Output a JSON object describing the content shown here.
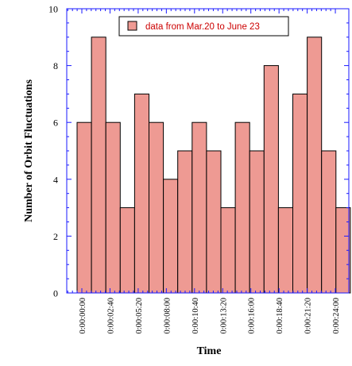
{
  "chart_data": {
    "type": "bar",
    "title": "",
    "xlabel": "Time",
    "ylabel": "Number of Orbit Fluctuations",
    "ylim": [
      0,
      10
    ],
    "yticks": [
      0,
      2,
      4,
      6,
      8,
      10
    ],
    "xticks": [
      "0:00:00:00",
      "0:00:02:40",
      "0:00:05:20",
      "0:00:08:00",
      "0:00:10:40",
      "0:00:13:20",
      "0:00:16:00",
      "0:00:18:40",
      "0:00:21:20",
      "0:00:24:00"
    ],
    "series": [
      {
        "name": "data from Mar.20 to June 23",
        "values": [
          6,
          9,
          6,
          3,
          7,
          6,
          4,
          5,
          6,
          5,
          3,
          6,
          5,
          8,
          3,
          7,
          9,
          5,
          3
        ]
      }
    ],
    "grid": false,
    "legend_position": "top-center",
    "colors": {
      "bar_fill": "#ee9a93",
      "bar_stroke": "#000000",
      "axis": "#1a1aff",
      "legend_text": "#cc0000"
    }
  }
}
